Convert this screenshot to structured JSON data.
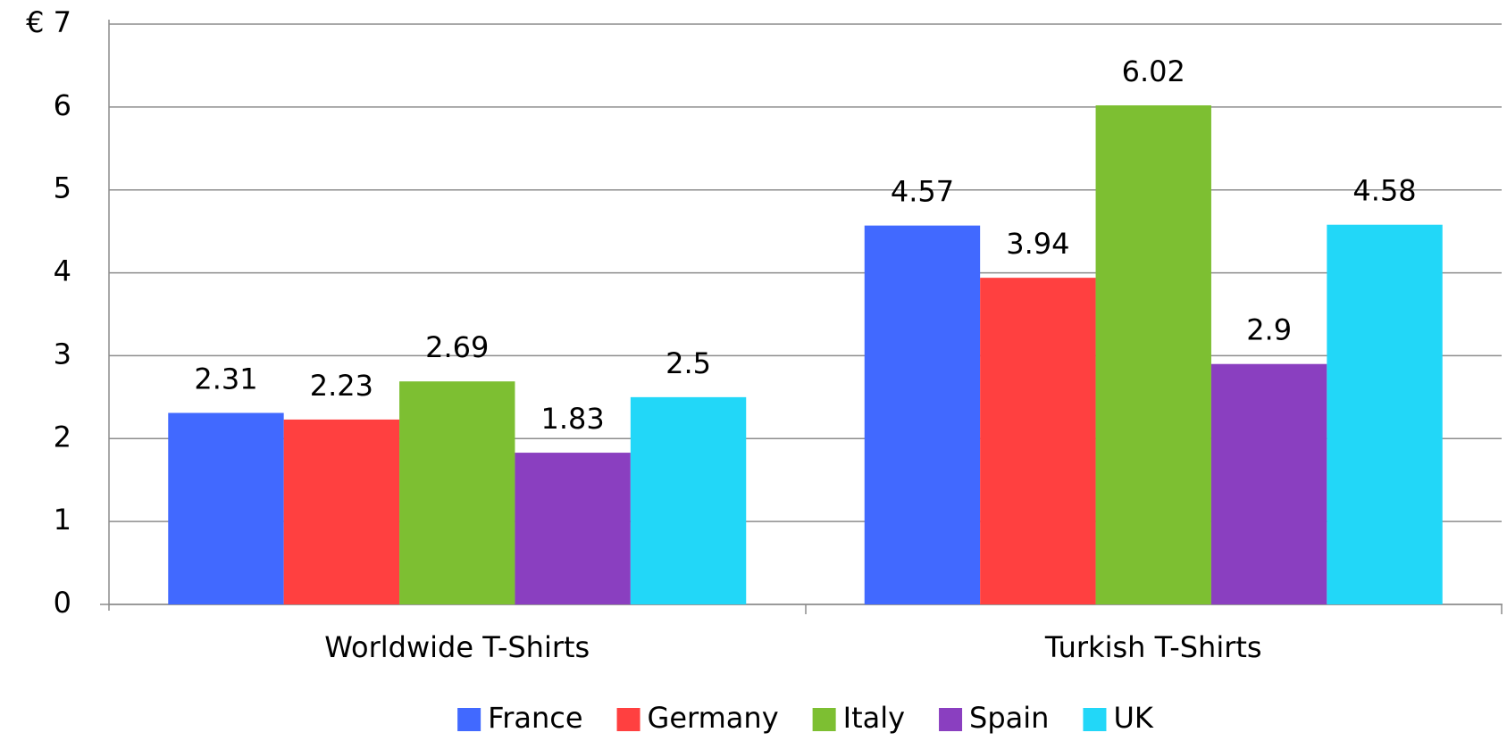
{
  "chart_data": {
    "type": "bar",
    "categories": [
      "Worldwide T-Shirts",
      "Turkish T-Shirts"
    ],
    "series": [
      {
        "name": "France",
        "color": "#4169ff",
        "values": [
          2.31,
          4.57
        ]
      },
      {
        "name": "Germany",
        "color": "#ff4040",
        "values": [
          2.23,
          3.94
        ]
      },
      {
        "name": "Italy",
        "color": "#7dbf32",
        "values": [
          2.69,
          6.02
        ]
      },
      {
        "name": "Spain",
        "color": "#8a3fc0",
        "values": [
          1.83,
          2.9
        ]
      },
      {
        "name": "UK",
        "color": "#22d7f8",
        "values": [
          2.5,
          4.58
        ]
      }
    ],
    "ylim": [
      0,
      7
    ],
    "yticks": [
      0,
      1,
      2,
      3,
      4,
      5,
      6,
      {
        "value": 7,
        "label": "€ 7"
      }
    ],
    "grid": true,
    "legend": "bottom"
  }
}
